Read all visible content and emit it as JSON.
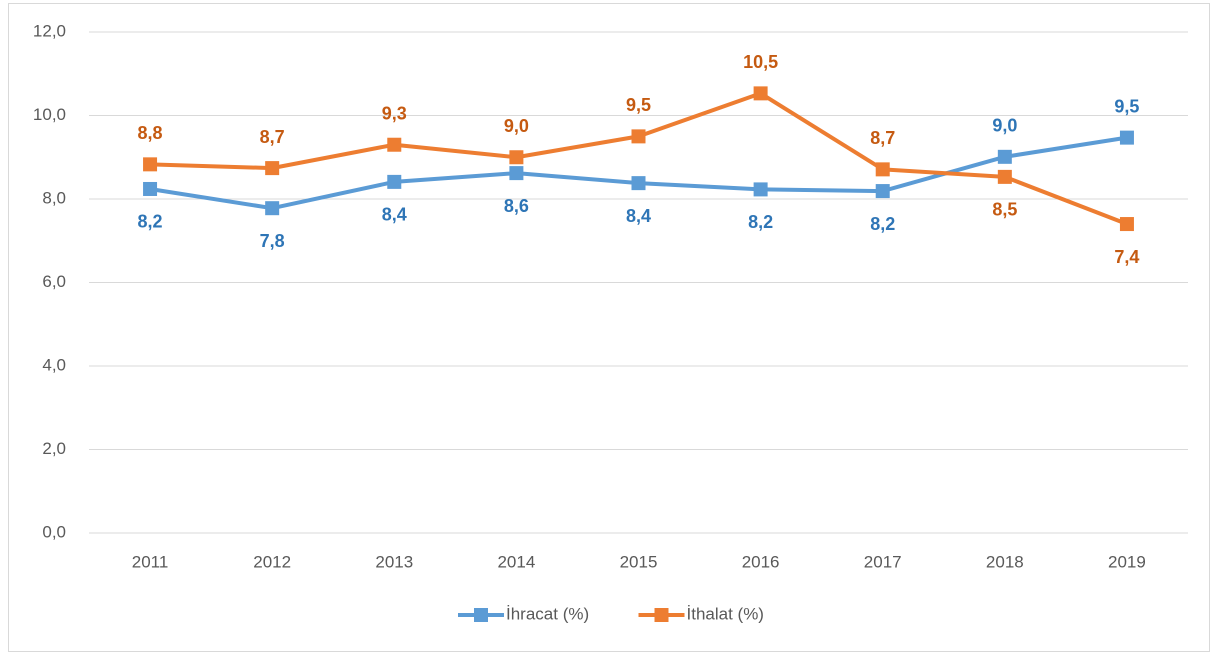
{
  "chart_data": {
    "type": "line",
    "categories": [
      "2011",
      "2012",
      "2013",
      "2014",
      "2015",
      "2016",
      "2017",
      "2018",
      "2019"
    ],
    "series": [
      {
        "name": "İhracat (%)",
        "color": "#5b9bd5",
        "label_color": "#2e75b6",
        "values": [
          8.24,
          7.78,
          8.41,
          8.62,
          8.38,
          8.23,
          8.19,
          9.01,
          9.47
        ],
        "value_labels": [
          "8,2",
          "7,8",
          "8,4",
          "8,6",
          "8,4",
          "8,2",
          "8,2",
          "9,0",
          "9,5"
        ]
      },
      {
        "name": "İthalat (%)",
        "color": "#ed7d31",
        "label_color": "#c55a11",
        "values": [
          8.83,
          8.74,
          9.3,
          9.0,
          9.5,
          10.53,
          8.71,
          8.53,
          7.4
        ],
        "value_labels": [
          "8,8",
          "8,7",
          "9,3",
          "9,0",
          "9,5",
          "10,5",
          "8,7",
          "8,5",
          "7,4"
        ]
      }
    ],
    "ylim": [
      0,
      12
    ],
    "yticks": [
      {
        "value": 0,
        "label": "0,0"
      },
      {
        "value": 2,
        "label": "2,0"
      },
      {
        "value": 4,
        "label": "4,0"
      },
      {
        "value": 6,
        "label": "6,0"
      },
      {
        "value": 8,
        "label": "8,0"
      },
      {
        "value": 10,
        "label": "10,0"
      },
      {
        "value": 12,
        "label": "12,0"
      }
    ],
    "grid": true,
    "legend": "bottom"
  }
}
